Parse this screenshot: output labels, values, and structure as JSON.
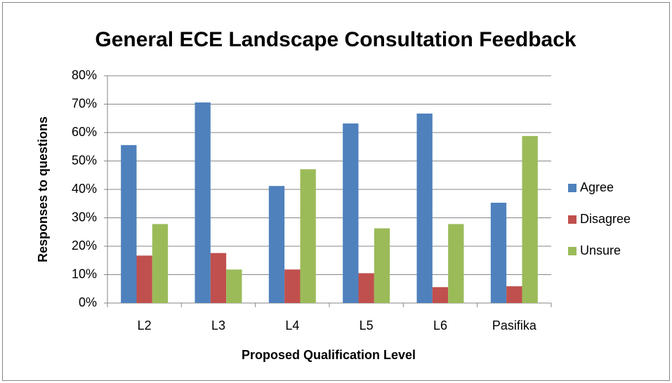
{
  "chart_data": {
    "type": "bar",
    "title": "General ECE Landscape Consultation Feedback",
    "xlabel": "Proposed Qualification Level",
    "ylabel": "Responses to questions",
    "categories": [
      "L2",
      "L3",
      "L4",
      "L5",
      "L6",
      "Pasifika"
    ],
    "series": [
      {
        "name": "Agree",
        "color": "#4f81bd",
        "values": [
          55.6,
          70.6,
          41.2,
          63.2,
          66.7,
          35.3
        ]
      },
      {
        "name": "Disagree",
        "color": "#c0504d",
        "values": [
          16.7,
          17.6,
          11.8,
          10.5,
          5.6,
          5.9
        ]
      },
      {
        "name": "Unsure",
        "color": "#9bbb59",
        "values": [
          27.8,
          11.8,
          47.1,
          26.3,
          27.8,
          58.8
        ]
      }
    ],
    "ylim": [
      0,
      80
    ],
    "yticks": [
      {
        "value": 0,
        "label": "0%"
      },
      {
        "value": 10,
        "label": "10%"
      },
      {
        "value": 20,
        "label": "20%"
      },
      {
        "value": 30,
        "label": "30%"
      },
      {
        "value": 40,
        "label": "40%"
      },
      {
        "value": 50,
        "label": "50%"
      },
      {
        "value": 60,
        "label": "60%"
      },
      {
        "value": 70,
        "label": "70%"
      },
      {
        "value": 80,
        "label": "80%"
      }
    ],
    "grid": true,
    "legend": "right"
  }
}
